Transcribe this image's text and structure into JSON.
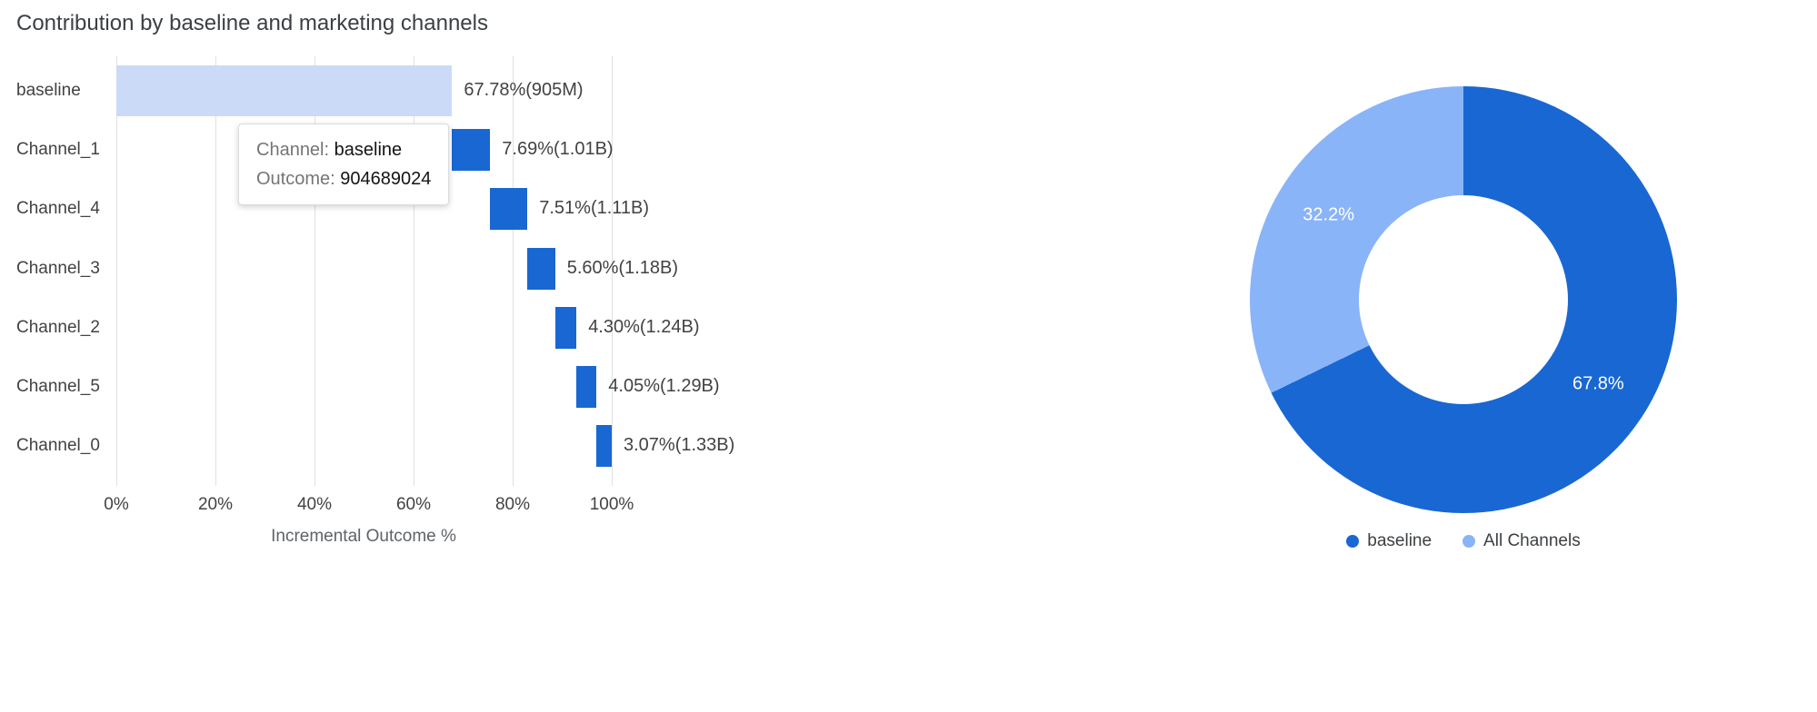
{
  "title": "Contribution by baseline and marketing channels",
  "colors": {
    "baseline_bar": "#cbdaf7",
    "channel_bar": "#1967d2",
    "pie_baseline": "#1967d2",
    "pie_all_channels": "#8ab4f8",
    "gridline": "#e0e0e0"
  },
  "tooltip": {
    "channel_label": "Channel:",
    "channel_value": "baseline",
    "outcome_label": "Outcome:",
    "outcome_value": "904689024"
  },
  "chart_data": [
    {
      "type": "bar",
      "subtype": "horizontal_waterfall",
      "title": "Contribution by baseline and marketing channels",
      "xlabel": "Incremental Outcome %",
      "x_ticks": [
        "0%",
        "20%",
        "40%",
        "60%",
        "80%",
        "100%"
      ],
      "xlim": [
        0,
        100
      ],
      "grid": true,
      "bars": [
        {
          "category": "baseline",
          "start": 0,
          "end": 67.78,
          "pct": 67.78,
          "cumulative_outcome": "905M",
          "label": "67.78%(905M)",
          "color_key": "baseline_bar"
        },
        {
          "category": "Channel_1",
          "start": 67.78,
          "end": 75.47,
          "pct": 7.69,
          "cumulative_outcome": "1.01B",
          "label": "7.69%(1.01B)",
          "color_key": "channel_bar"
        },
        {
          "category": "Channel_4",
          "start": 75.47,
          "end": 82.98,
          "pct": 7.51,
          "cumulative_outcome": "1.11B",
          "label": "7.51%(1.11B)",
          "color_key": "channel_bar"
        },
        {
          "category": "Channel_3",
          "start": 82.98,
          "end": 88.58,
          "pct": 5.6,
          "cumulative_outcome": "1.18B",
          "label": "5.60%(1.18B)",
          "color_key": "channel_bar"
        },
        {
          "category": "Channel_2",
          "start": 88.58,
          "end": 92.88,
          "pct": 4.3,
          "cumulative_outcome": "1.24B",
          "label": "4.30%(1.24B)",
          "color_key": "channel_bar"
        },
        {
          "category": "Channel_5",
          "start": 92.88,
          "end": 96.93,
          "pct": 4.05,
          "cumulative_outcome": "1.29B",
          "label": "4.05%(1.29B)",
          "color_key": "channel_bar"
        },
        {
          "category": "Channel_0",
          "start": 96.93,
          "end": 100,
          "pct": 3.07,
          "cumulative_outcome": "1.33B",
          "label": "3.07%(1.33B)",
          "color_key": "channel_bar"
        }
      ]
    },
    {
      "type": "pie",
      "subtype": "donut",
      "legend_position": "bottom",
      "slices": [
        {
          "label": "baseline",
          "value": 67.8,
          "display": "67.8%",
          "color_key": "pie_baseline"
        },
        {
          "label": "All Channels",
          "value": 32.2,
          "display": "32.2%",
          "color_key": "pie_all_channels"
        }
      ]
    }
  ]
}
